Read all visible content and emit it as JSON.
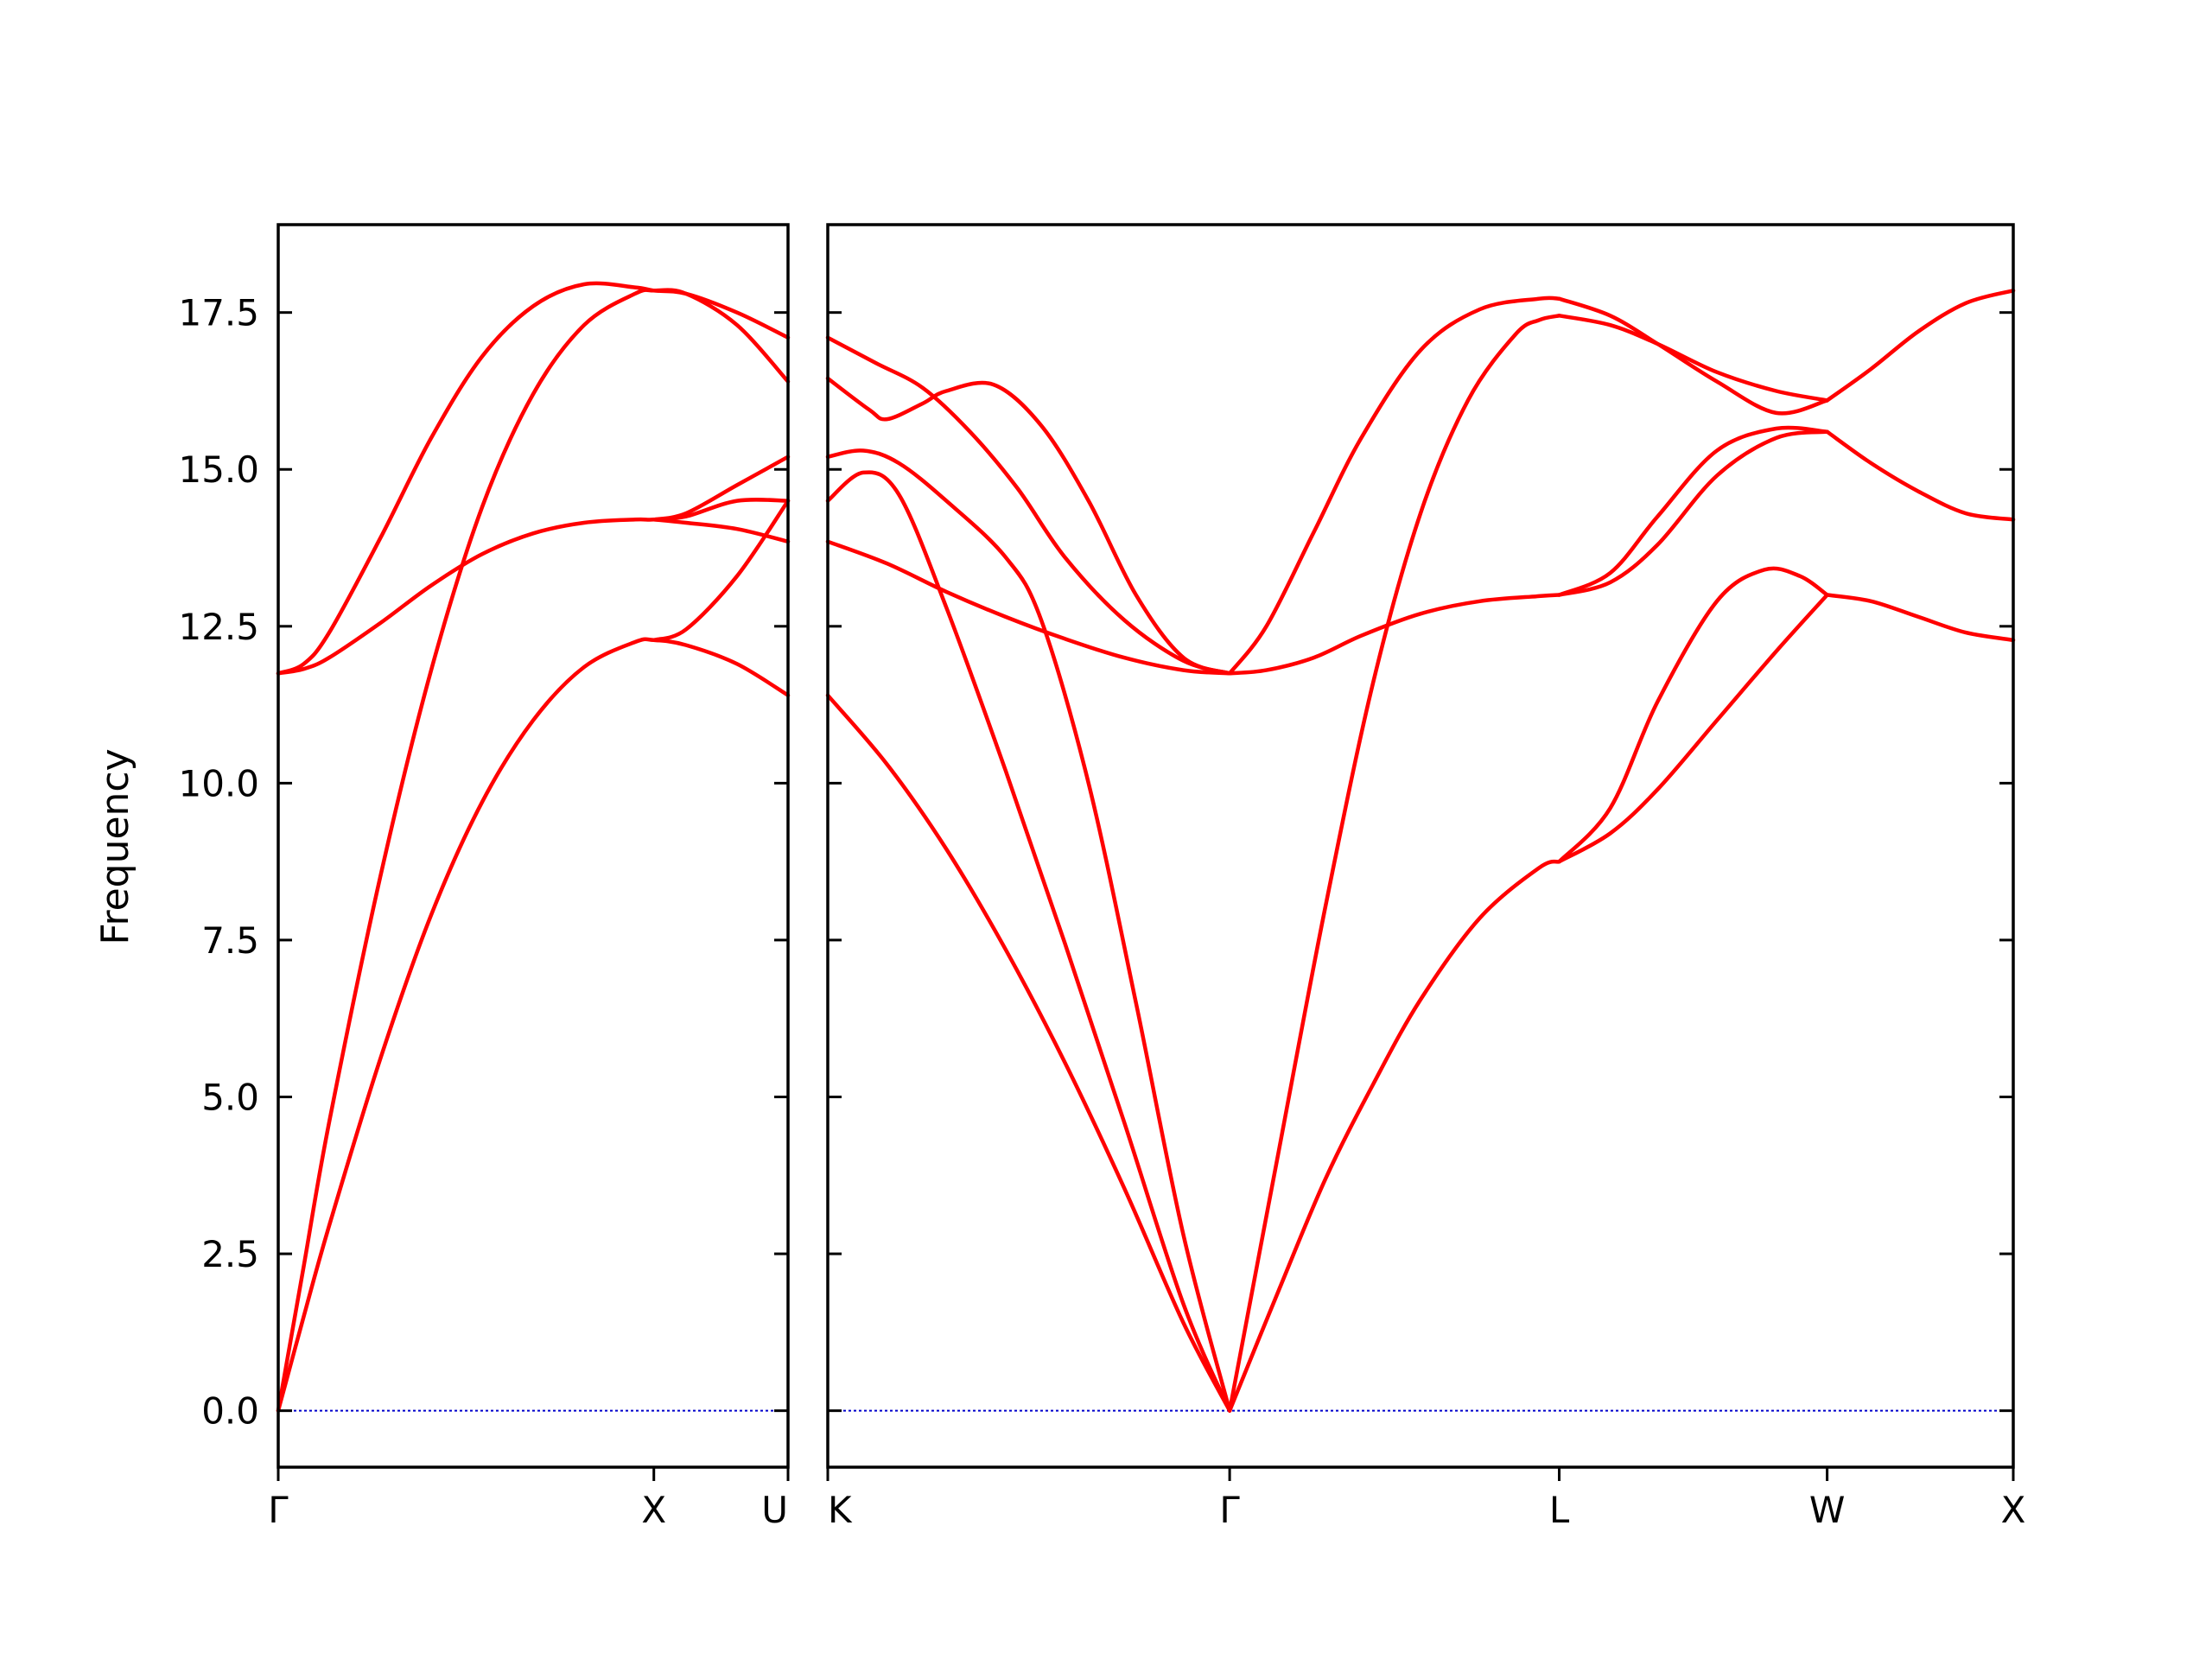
{
  "chart_data": {
    "type": "line",
    "ylabel": "Frequency",
    "ylim": [
      -0.9,
      18.9
    ],
    "yticks": [
      0.0,
      2.5,
      5.0,
      7.5,
      10.0,
      12.5,
      15.0,
      17.5
    ],
    "ytick_labels": [
      "0.0",
      "2.5",
      "5.0",
      "7.5",
      "10.0",
      "12.5",
      "15.0",
      "17.5"
    ],
    "zero_line_color": "#0000cc",
    "band_color": "#ff0000",
    "legend": "none",
    "grid": false,
    "panels": [
      {
        "xlim": [
          0,
          1.0
        ],
        "xticks": [
          0,
          0.7368,
          1.0
        ],
        "xtick_labels": [
          "Γ",
          "X",
          "U"
        ],
        "bands": [
          {
            "x": [
              0,
              0.05,
              0.1,
              0.2,
              0.3,
              0.4,
              0.5,
              0.6,
              0.7,
              0.7368,
              0.8,
              0.9,
              1.0
            ],
            "y": [
              0,
              1.5,
              2.95,
              5.6,
              7.9,
              9.7,
              11.0,
              11.85,
              12.25,
              12.28,
              12.2,
              11.9,
              11.4
            ]
          },
          {
            "x": [
              0,
              0.05,
              0.1,
              0.2,
              0.3,
              0.4,
              0.5,
              0.6,
              0.7,
              0.7368,
              0.8,
              0.9,
              1.0
            ],
            "y": [
              0,
              2.3,
              4.6,
              8.5,
              11.8,
              14.4,
              16.2,
              17.3,
              17.8,
              17.85,
              17.8,
              17.3,
              16.4
            ]
          },
          {
            "x": [
              0,
              0.05,
              0.1,
              0.2,
              0.3,
              0.4,
              0.5,
              0.6,
              0.7,
              0.7368,
              0.8,
              0.9,
              1.0
            ],
            "y": [
              11.75,
              11.82,
              12.0,
              12.55,
              13.15,
              13.65,
              13.98,
              14.15,
              14.2,
              14.2,
              14.25,
              14.5,
              14.5
            ]
          },
          {
            "x": [
              0,
              0.05,
              0.1,
              0.2,
              0.3,
              0.4,
              0.5,
              0.6,
              0.7,
              0.7368,
              0.8,
              0.9,
              1.0
            ],
            "y": [
              11.75,
              11.9,
              12.4,
              13.9,
              15.5,
              16.8,
              17.6,
              17.95,
              17.9,
              17.85,
              17.8,
              17.5,
              17.1
            ]
          },
          {
            "x": [
              0.7368,
              0.8,
              0.9,
              1.0
            ],
            "y": [
              12.28,
              12.45,
              13.3,
              14.5
            ]
          },
          {
            "x": [
              0.7368,
              0.8,
              0.9,
              1.0
            ],
            "y": [
              14.2,
              14.3,
              14.75,
              15.2
            ]
          },
          {
            "x": [
              0.7368,
              0.8,
              0.9,
              1.0
            ],
            "y": [
              14.2,
              14.15,
              14.05,
              13.85
            ]
          }
        ]
      },
      {
        "xlim": [
          0,
          1.0
        ],
        "xticks": [
          0,
          0.339,
          0.617,
          0.843,
          1.0
        ],
        "xtick_labels": [
          "K",
          "Γ",
          "L",
          "W",
          "X"
        ],
        "bands": [
          {
            "x": [
              0,
              0.05,
              0.1,
              0.15,
              0.2,
              0.25,
              0.3,
              0.339
            ],
            "y": [
              11.4,
              10.3,
              8.95,
              7.35,
              5.55,
              3.55,
              1.4,
              0
            ]
          },
          {
            "x": [
              0,
              0.03,
              0.06,
              0.1,
              0.15,
              0.2,
              0.25,
              0.3,
              0.339
            ],
            "y": [
              14.5,
              14.95,
              14.6,
              12.8,
              10.2,
              7.45,
              4.6,
              1.7,
              0
            ]
          },
          {
            "x": [
              0,
              0.03,
              0.06,
              0.1,
              0.15,
              0.18,
              0.22,
              0.26,
              0.3,
              0.339
            ],
            "y": [
              15.2,
              15.3,
              15.1,
              14.5,
              13.6,
              12.6,
              10.0,
              6.5,
              2.8,
              0
            ]
          },
          {
            "x": [
              0,
              0.05,
              0.1,
              0.15,
              0.2,
              0.25,
              0.3,
              0.339
            ],
            "y": [
              13.85,
              13.5,
              13.05,
              12.65,
              12.3,
              12.0,
              11.8,
              11.75
            ]
          },
          {
            "x": [
              0,
              0.035,
              0.05,
              0.08,
              0.1,
              0.14,
              0.18,
              0.22,
              0.26,
              0.3,
              0.339
            ],
            "y": [
              16.45,
              15.95,
              15.8,
              16.05,
              16.25,
              16.35,
              15.7,
              14.5,
              13.0,
              12.0,
              11.75
            ]
          },
          {
            "x": [
              0,
              0.04,
              0.08,
              0.12,
              0.16,
              0.2,
              0.25,
              0.3,
              0.339
            ],
            "y": [
              17.1,
              16.7,
              16.3,
              15.6,
              14.7,
              13.6,
              12.6,
              11.95,
              11.75
            ]
          },
          {
            "x": [
              0.339,
              0.38,
              0.42,
              0.46,
              0.5,
              0.55,
              0.6,
              0.617
            ],
            "y": [
              0,
              1.9,
              3.7,
              5.2,
              6.55,
              7.85,
              8.65,
              8.75
            ]
          },
          {
            "x": [
              0.339,
              0.38,
              0.42,
              0.46,
              0.5,
              0.54,
              0.58,
              0.6,
              0.617
            ],
            "y": [
              0,
              4.1,
              8.05,
              11.6,
              14.3,
              16.1,
              17.15,
              17.38,
              17.45
            ]
          },
          {
            "x": [
              0.339,
              0.37,
              0.41,
              0.45,
              0.5,
              0.55,
              0.6,
              0.617
            ],
            "y": [
              11.75,
              11.8,
              12.0,
              12.35,
              12.7,
              12.9,
              12.98,
              13.0
            ]
          },
          {
            "x": [
              0.339,
              0.37,
              0.41,
              0.45,
              0.5,
              0.55,
              0.6,
              0.617
            ],
            "y": [
              11.75,
              12.5,
              14.0,
              15.5,
              16.9,
              17.55,
              17.72,
              17.72
            ]
          },
          {
            "x": [
              0.617,
              0.66,
              0.7,
              0.75,
              0.8,
              0.843
            ],
            "y": [
              8.75,
              9.2,
              9.9,
              11.0,
              12.1,
              13.0
            ]
          },
          {
            "x": [
              0.617,
              0.66,
              0.7,
              0.75,
              0.79,
              0.82,
              0.843
            ],
            "y": [
              8.75,
              9.6,
              11.3,
              12.9,
              13.4,
              13.3,
              13.0
            ]
          },
          {
            "x": [
              0.617,
              0.66,
              0.7,
              0.75,
              0.8,
              0.843
            ],
            "y": [
              13.0,
              13.2,
              13.8,
              14.9,
              15.5,
              15.6
            ]
          },
          {
            "x": [
              0.617,
              0.66,
              0.7,
              0.75,
              0.8,
              0.843
            ],
            "y": [
              13.0,
              13.35,
              14.25,
              15.3,
              15.65,
              15.6
            ]
          },
          {
            "x": [
              0.617,
              0.66,
              0.7,
              0.75,
              0.8,
              0.843
            ],
            "y": [
              17.45,
              17.3,
              17.0,
              16.55,
              16.25,
              16.1
            ]
          },
          {
            "x": [
              0.617,
              0.66,
              0.7,
              0.75,
              0.8,
              0.843
            ],
            "y": [
              17.72,
              17.45,
              17.0,
              16.4,
              15.9,
              16.1
            ]
          },
          {
            "x": [
              0.843,
              0.88,
              0.92,
              0.96,
              1.0
            ],
            "y": [
              13.0,
              12.9,
              12.65,
              12.4,
              12.28
            ]
          },
          {
            "x": [
              0.843,
              0.88,
              0.92,
              0.96,
              1.0
            ],
            "y": [
              15.6,
              15.1,
              14.65,
              14.3,
              14.2
            ]
          },
          {
            "x": [
              0.843,
              0.88,
              0.92,
              0.96,
              1.0
            ],
            "y": [
              16.1,
              16.6,
              17.2,
              17.65,
              17.85
            ]
          }
        ]
      }
    ]
  }
}
